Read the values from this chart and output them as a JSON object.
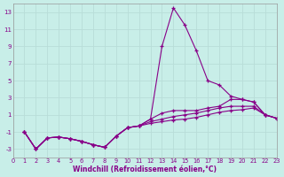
{
  "xlabel": "Windchill (Refroidissement éolien,°C)",
  "background_color": "#c8eee8",
  "grid_color": "#b8ddd8",
  "line_color": "#880088",
  "xlim": [
    0,
    23
  ],
  "ylim": [
    -4,
    14
  ],
  "xticks": [
    0,
    1,
    2,
    3,
    4,
    5,
    6,
    7,
    8,
    9,
    10,
    11,
    12,
    13,
    14,
    15,
    16,
    17,
    18,
    19,
    20,
    21,
    22,
    23
  ],
  "yticks": [
    -3,
    -1,
    1,
    3,
    5,
    7,
    9,
    11,
    13
  ],
  "lines": [
    [
      null,
      -1.0,
      -3.0,
      -1.7,
      -1.6,
      -1.8,
      -2.1,
      -2.5,
      -2.8,
      -1.5,
      -0.5,
      -0.3,
      0.5,
      9.0,
      13.5,
      11.5,
      8.5,
      5.0,
      4.5,
      3.2,
      2.8,
      2.5,
      1.0,
      0.6
    ],
    [
      null,
      -1.0,
      -3.0,
      -1.7,
      -1.6,
      -1.8,
      -2.1,
      -2.5,
      -2.8,
      -1.5,
      -0.5,
      -0.3,
      0.5,
      1.2,
      1.5,
      1.5,
      1.5,
      1.8,
      2.0,
      2.8,
      2.8,
      2.5,
      1.0,
      0.6
    ],
    [
      null,
      -1.0,
      -3.0,
      -1.7,
      -1.6,
      -1.8,
      -2.1,
      -2.5,
      -2.8,
      -1.5,
      -0.5,
      -0.3,
      0.2,
      0.5,
      0.8,
      1.0,
      1.2,
      1.5,
      1.8,
      2.0,
      2.0,
      2.0,
      1.0,
      0.6
    ],
    [
      null,
      -1.0,
      -3.0,
      -1.7,
      -1.6,
      -1.8,
      -2.1,
      -2.5,
      -2.8,
      -1.5,
      -0.5,
      -0.3,
      0.0,
      0.2,
      0.4,
      0.5,
      0.7,
      1.0,
      1.3,
      1.5,
      1.6,
      1.8,
      1.0,
      0.6
    ]
  ]
}
